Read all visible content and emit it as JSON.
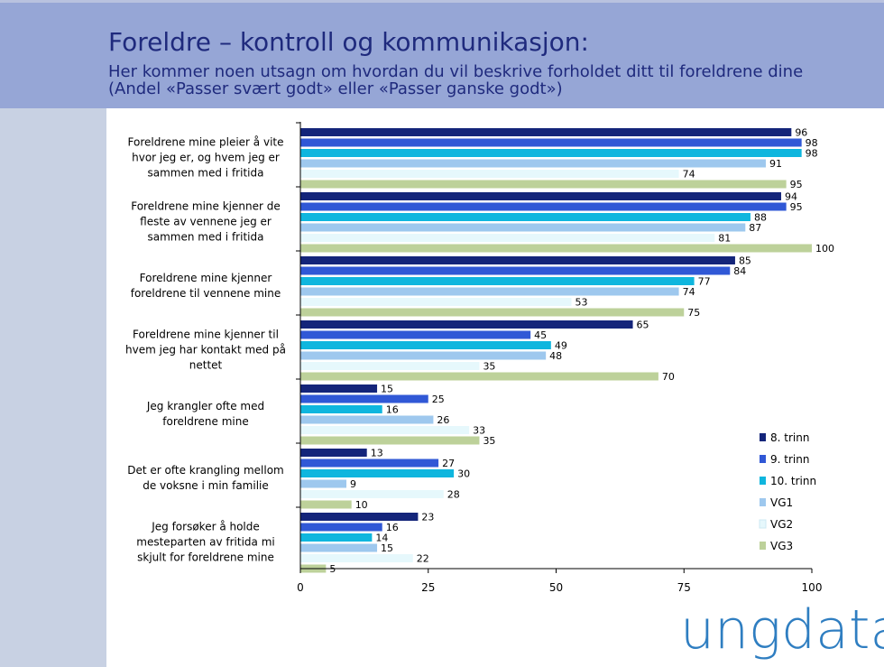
{
  "header": {
    "title": "Foreldre – kontroll og kommunikasjon:",
    "subtitle": "Her kommer noen utsagn om hvordan du vil beskrive forholdet ditt til foreldrene dine (Andel «Passer svært godt» eller «Passer ganske godt»)"
  },
  "logo": {
    "text": "ungdata",
    "color": "#2f7ec1"
  },
  "chart_data": {
    "type": "bar",
    "orientation": "horizontal",
    "title": "Foreldre – kontroll og kommunikasjon:",
    "xlabel": "",
    "ylabel": "",
    "xlim": [
      0,
      100
    ],
    "xticks": [
      0,
      25,
      50,
      75,
      100
    ],
    "grid": false,
    "legend_position": "right",
    "categories": [
      [
        "Foreldrene mine pleier å vite",
        "hvor jeg er, og hvem jeg er",
        "sammen med i fritida"
      ],
      [
        "Foreldrene mine kjenner de",
        "fleste av vennene jeg er",
        "sammen med i fritida"
      ],
      [
        "Foreldrene mine kjenner",
        "foreldrene til vennene mine"
      ],
      [
        "Foreldrene mine kjenner til",
        "hvem jeg har kontakt med på",
        "nettet"
      ],
      [
        "Jeg krangler ofte med",
        "foreldrene mine"
      ],
      [
        "Det er ofte krangling mellom",
        "de voksne i min familie"
      ],
      [
        "Jeg forsøker å holde",
        "mesteparten av fritida mi",
        "skjult for foreldrene mine"
      ]
    ],
    "series": [
      {
        "name": "8. trinn",
        "color": "#14257a",
        "values": [
          96,
          94,
          85,
          65,
          15,
          13,
          23
        ]
      },
      {
        "name": "9. trinn",
        "color": "#3058d6",
        "values": [
          98,
          95,
          84,
          45,
          25,
          27,
          16
        ]
      },
      {
        "name": "10. trinn",
        "color": "#0fb6de",
        "values": [
          98,
          88,
          77,
          49,
          16,
          30,
          14
        ]
      },
      {
        "name": "VG1",
        "color": "#9ec8ee",
        "values": [
          91,
          87,
          74,
          48,
          26,
          9,
          15
        ]
      },
      {
        "name": "VG2",
        "color": "#e6f8fc",
        "values": [
          74,
          81,
          53,
          35,
          33,
          28,
          22
        ]
      },
      {
        "name": "VG3",
        "color": "#bdd19a",
        "values": [
          95,
          100,
          75,
          70,
          35,
          10,
          5
        ]
      }
    ]
  }
}
